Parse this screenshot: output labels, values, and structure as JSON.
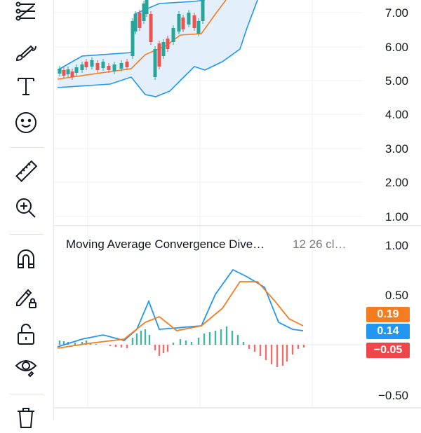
{
  "toolbar": {
    "tools": [
      {
        "name": "fib-icon"
      },
      {
        "name": "brush-icon"
      },
      {
        "name": "text-icon"
      },
      {
        "name": "emoji-icon"
      },
      {
        "name": "ruler-icon"
      },
      {
        "name": "zoom-in-icon"
      },
      {
        "name": "magnet-icon"
      },
      {
        "name": "pencil-lock-icon"
      },
      {
        "name": "unlock-icon"
      },
      {
        "name": "eye-icon"
      },
      {
        "name": "trash-icon"
      }
    ]
  },
  "price_axis": [
    "7.00",
    "6.00",
    "5.00",
    "4.00",
    "3.00",
    "2.00",
    "1.00"
  ],
  "macd": {
    "title": "Moving Average Convergence Dive…",
    "params": "12 26 cl…",
    "axis": [
      "1.00",
      "0.50",
      "−0.50"
    ],
    "badges": {
      "signal": {
        "value": "0.19",
        "color": "#f57c1f"
      },
      "macd": {
        "value": "0.14",
        "color": "#2196f3"
      },
      "hist": {
        "value": "−0.05",
        "color": "#f0464a"
      }
    }
  },
  "colors": {
    "up": "#26a69a",
    "down": "#ef5350",
    "bb_band": "#2196f3",
    "bb_fill": "#e3f0fb",
    "ma": "#f57c1f"
  }
}
